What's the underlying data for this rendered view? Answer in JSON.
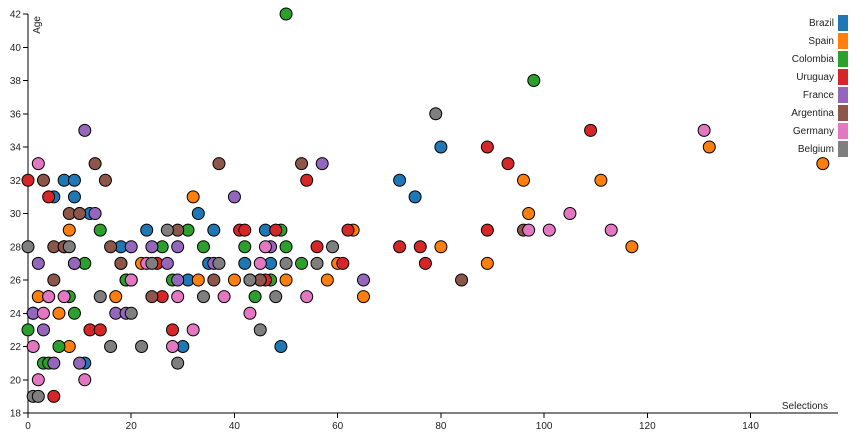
{
  "chart_data": {
    "type": "scatter",
    "title": "",
    "xlabel": "Selections",
    "ylabel": "Age",
    "xlim": [
      0,
      155
    ],
    "ylim": [
      18,
      42
    ],
    "xticks": [
      0,
      20,
      40,
      60,
      80,
      100,
      120,
      140
    ],
    "yticks": [
      18,
      20,
      22,
      24,
      26,
      28,
      30,
      32,
      34,
      36,
      38,
      40,
      42
    ],
    "grid": false,
    "legend_position": "top-right",
    "colors": {
      "Brazil": "#1f77b4",
      "Spain": "#ff7f0e",
      "Colombia": "#2ca02c",
      "Uruguay": "#d62728",
      "France": "#9467bd",
      "Argentina": "#8c564b",
      "Germany": "#e377c2",
      "Belgium": "#7f7f7f"
    },
    "series": [
      {
        "name": "Brazil",
        "points": [
          [
            5,
            31
          ],
          [
            7,
            32
          ],
          [
            9,
            31
          ],
          [
            10,
            30
          ],
          [
            12,
            30
          ],
          [
            11,
            21
          ],
          [
            18,
            28
          ],
          [
            19,
            26
          ],
          [
            23,
            29
          ],
          [
            31,
            26
          ],
          [
            33,
            30
          ],
          [
            35,
            27
          ],
          [
            36,
            29
          ],
          [
            42,
            27
          ],
          [
            46,
            29
          ],
          [
            47,
            27
          ],
          [
            49,
            22
          ],
          [
            72,
            32
          ],
          [
            75,
            31
          ],
          [
            80,
            34
          ],
          [
            30,
            22
          ],
          [
            9,
            32
          ]
        ]
      },
      {
        "name": "Spain",
        "points": [
          [
            2,
            25
          ],
          [
            4,
            25
          ],
          [
            6,
            24
          ],
          [
            8,
            29
          ],
          [
            8,
            22
          ],
          [
            17,
            25
          ],
          [
            20,
            26
          ],
          [
            22,
            27
          ],
          [
            32,
            31
          ],
          [
            33,
            26
          ],
          [
            40,
            26
          ],
          [
            45,
            26
          ],
          [
            50,
            26
          ],
          [
            58,
            26
          ],
          [
            63,
            29
          ],
          [
            65,
            25
          ],
          [
            80,
            28
          ],
          [
            89,
            27
          ],
          [
            96,
            32
          ],
          [
            97,
            30
          ],
          [
            111,
            32
          ],
          [
            117,
            28
          ],
          [
            132,
            34
          ],
          [
            154,
            33
          ],
          [
            60,
            27
          ]
        ]
      },
      {
        "name": "Colombia",
        "points": [
          [
            0,
            23
          ],
          [
            3,
            21
          ],
          [
            4,
            21
          ],
          [
            6,
            22
          ],
          [
            8,
            25
          ],
          [
            9,
            24
          ],
          [
            11,
            27
          ],
          [
            14,
            29
          ],
          [
            19,
            26
          ],
          [
            26,
            28
          ],
          [
            28,
            26
          ],
          [
            31,
            29
          ],
          [
            34,
            28
          ],
          [
            42,
            28
          ],
          [
            44,
            25
          ],
          [
            47,
            26
          ],
          [
            49,
            29
          ],
          [
            50,
            28
          ],
          [
            53,
            27
          ],
          [
            98,
            38
          ],
          [
            50,
            42
          ],
          [
            1,
            24
          ]
        ]
      },
      {
        "name": "Uruguay",
        "points": [
          [
            0,
            32
          ],
          [
            4,
            31
          ],
          [
            7,
            28
          ],
          [
            9,
            27
          ],
          [
            12,
            23
          ],
          [
            14,
            23
          ],
          [
            25,
            27
          ],
          [
            26,
            25
          ],
          [
            28,
            23
          ],
          [
            41,
            29
          ],
          [
            42,
            29
          ],
          [
            46,
            26
          ],
          [
            48,
            29
          ],
          [
            54,
            32
          ],
          [
            56,
            28
          ],
          [
            61,
            27
          ],
          [
            62,
            29
          ],
          [
            72,
            28
          ],
          [
            76,
            28
          ],
          [
            77,
            27
          ],
          [
            89,
            29
          ],
          [
            93,
            33
          ],
          [
            89,
            34
          ],
          [
            109,
            35
          ],
          [
            5,
            19
          ]
        ]
      },
      {
        "name": "France",
        "points": [
          [
            1,
            24
          ],
          [
            2,
            27
          ],
          [
            3,
            23
          ],
          [
            5,
            21
          ],
          [
            10,
            21
          ],
          [
            11,
            35
          ],
          [
            13,
            30
          ],
          [
            17,
            24
          ],
          [
            18,
            27
          ],
          [
            19,
            24
          ],
          [
            20,
            28
          ],
          [
            24,
            28
          ],
          [
            27,
            27
          ],
          [
            29,
            26
          ],
          [
            29,
            28
          ],
          [
            36,
            27
          ],
          [
            40,
            31
          ],
          [
            47,
            28
          ],
          [
            57,
            33
          ],
          [
            65,
            26
          ],
          [
            9,
            27
          ]
        ]
      },
      {
        "name": "Argentina",
        "points": [
          [
            3,
            32
          ],
          [
            5,
            28
          ],
          [
            5,
            26
          ],
          [
            7,
            28
          ],
          [
            8,
            30
          ],
          [
            10,
            30
          ],
          [
            13,
            33
          ],
          [
            15,
            32
          ],
          [
            16,
            28
          ],
          [
            18,
            27
          ],
          [
            24,
            25
          ],
          [
            29,
            29
          ],
          [
            36,
            26
          ],
          [
            37,
            33
          ],
          [
            43,
            26
          ],
          [
            45,
            26
          ],
          [
            53,
            33
          ],
          [
            84,
            26
          ],
          [
            96,
            29
          ]
        ]
      },
      {
        "name": "Germany",
        "points": [
          [
            1,
            22
          ],
          [
            2,
            33
          ],
          [
            2,
            20
          ],
          [
            3,
            24
          ],
          [
            4,
            25
          ],
          [
            7,
            25
          ],
          [
            11,
            20
          ],
          [
            20,
            26
          ],
          [
            23,
            27
          ],
          [
            28,
            22
          ],
          [
            29,
            25
          ],
          [
            32,
            23
          ],
          [
            38,
            25
          ],
          [
            43,
            24
          ],
          [
            45,
            27
          ],
          [
            46,
            28
          ],
          [
            54,
            25
          ],
          [
            97,
            29
          ],
          [
            101,
            29
          ],
          [
            105,
            30
          ],
          [
            113,
            29
          ],
          [
            131,
            35
          ]
        ]
      },
      {
        "name": "Belgium",
        "points": [
          [
            0,
            28
          ],
          [
            1,
            19
          ],
          [
            2,
            19
          ],
          [
            8,
            28
          ],
          [
            14,
            25
          ],
          [
            16,
            22
          ],
          [
            20,
            24
          ],
          [
            22,
            22
          ],
          [
            24,
            27
          ],
          [
            27,
            29
          ],
          [
            29,
            21
          ],
          [
            34,
            25
          ],
          [
            37,
            27
          ],
          [
            43,
            26
          ],
          [
            45,
            23
          ],
          [
            48,
            25
          ],
          [
            50,
            27
          ],
          [
            56,
            27
          ],
          [
            59,
            28
          ],
          [
            79,
            36
          ]
        ]
      }
    ]
  }
}
